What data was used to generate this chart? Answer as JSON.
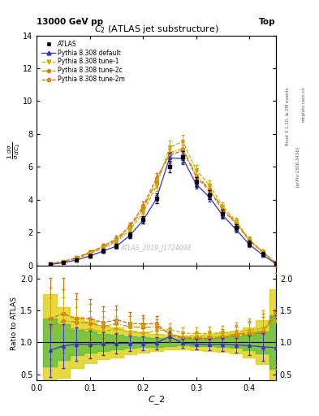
{
  "title_top": "13000 GeV pp",
  "title_top_right": "Top",
  "plot_title": "$C_2$ (ATLAS jet substructure)",
  "watermark": "ATLAS_2019_I1724098",
  "rivet_label": "Rivet 3.1.10, ≥ 2M events",
  "arxiv_label": "[arXiv:1306.3436]",
  "mcplots_label": "mcplots.cern.ch",
  "xlabel": "$C\\_2$",
  "ylabel_ratio": "Ratio to ATLAS",
  "xlim": [
    0.0,
    0.45
  ],
  "ylim_main": [
    0,
    14
  ],
  "ylim_ratio": [
    0.4,
    2.2
  ],
  "atlas_x": [
    0.025,
    0.05,
    0.075,
    0.1,
    0.125,
    0.15,
    0.175,
    0.2,
    0.225,
    0.25,
    0.275,
    0.3,
    0.325,
    0.35,
    0.375,
    0.4,
    0.425,
    0.45
  ],
  "atlas_y": [
    0.08,
    0.18,
    0.35,
    0.6,
    0.9,
    1.2,
    1.85,
    2.8,
    4.1,
    6.0,
    6.6,
    5.1,
    4.3,
    3.15,
    2.3,
    1.35,
    0.7,
    0.12
  ],
  "atlas_yerr": [
    0.03,
    0.05,
    0.07,
    0.1,
    0.12,
    0.14,
    0.17,
    0.22,
    0.28,
    0.35,
    0.35,
    0.3,
    0.28,
    0.24,
    0.2,
    0.16,
    0.12,
    0.05
  ],
  "default_y": [
    0.07,
    0.17,
    0.34,
    0.58,
    0.88,
    1.18,
    1.82,
    2.75,
    4.05,
    6.55,
    6.5,
    4.95,
    4.15,
    3.05,
    2.2,
    1.28,
    0.65,
    0.11
  ],
  "default_yerr": [
    0.02,
    0.04,
    0.06,
    0.09,
    0.11,
    0.13,
    0.16,
    0.2,
    0.26,
    0.32,
    0.32,
    0.27,
    0.24,
    0.21,
    0.18,
    0.14,
    0.1,
    0.04
  ],
  "tune1_y": [
    0.09,
    0.22,
    0.42,
    0.72,
    1.05,
    1.45,
    2.15,
    3.2,
    4.85,
    7.2,
    7.55,
    5.8,
    4.9,
    3.6,
    2.7,
    1.6,
    0.85,
    0.16
  ],
  "tune1_yerr": [
    0.03,
    0.06,
    0.09,
    0.12,
    0.15,
    0.18,
    0.22,
    0.27,
    0.33,
    0.38,
    0.38,
    0.33,
    0.29,
    0.25,
    0.21,
    0.17,
    0.13,
    0.06
  ],
  "tune2c_y": [
    0.1,
    0.24,
    0.46,
    0.78,
    1.12,
    1.55,
    2.3,
    3.45,
    5.1,
    6.85,
    7.1,
    5.5,
    4.65,
    3.45,
    2.6,
    1.55,
    0.82,
    0.17
  ],
  "tune2c_yerr": [
    0.03,
    0.06,
    0.09,
    0.13,
    0.16,
    0.19,
    0.23,
    0.28,
    0.34,
    0.38,
    0.38,
    0.33,
    0.29,
    0.25,
    0.21,
    0.17,
    0.13,
    0.06
  ],
  "tune2m_y": [
    0.11,
    0.26,
    0.48,
    0.82,
    1.18,
    1.62,
    2.4,
    3.6,
    5.3,
    6.7,
    7.0,
    5.4,
    4.55,
    3.38,
    2.55,
    1.52,
    0.8,
    0.18
  ],
  "tune2m_yerr": [
    0.03,
    0.07,
    0.1,
    0.13,
    0.16,
    0.19,
    0.23,
    0.28,
    0.34,
    0.37,
    0.37,
    0.32,
    0.28,
    0.24,
    0.21,
    0.16,
    0.12,
    0.06
  ],
  "color_atlas": "#000000",
  "color_default": "#3333cc",
  "color_tune1": "#ccaa00",
  "color_tune2c": "#cc8800",
  "color_tune2m": "#dd6600",
  "color_green_band": "#44bb44",
  "color_yellow_band": "#ddcc00",
  "yticks_main": [
    0,
    2,
    4,
    6,
    8,
    10,
    12,
    14
  ],
  "yticks_ratio": [
    0.5,
    1.0,
    1.5,
    2.0
  ],
  "xticks": [
    0.0,
    0.1,
    0.2,
    0.3,
    0.4
  ]
}
